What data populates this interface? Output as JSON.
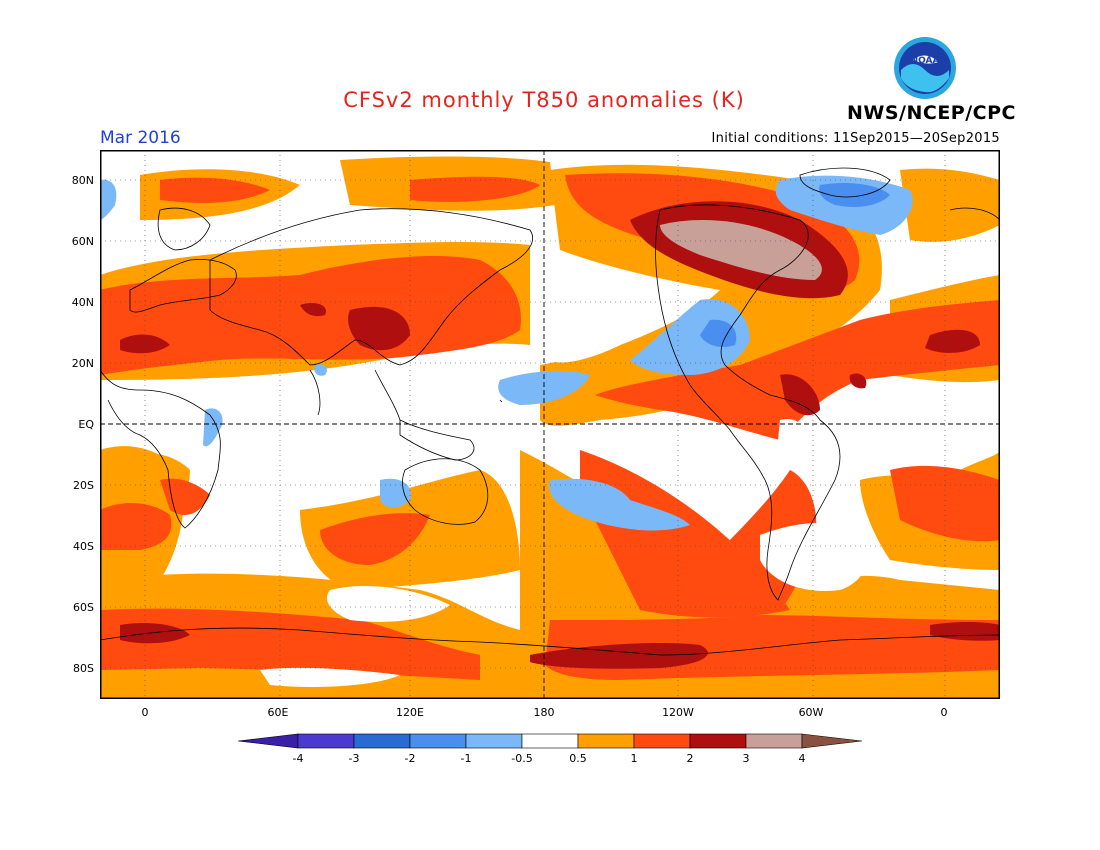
{
  "title": "CFSv2 monthly T850 anomalies (K)",
  "period": "Mar 2016",
  "initial_conditions": "Initial conditions: 11Sep2015—20Sep2015",
  "agency": "NWS/NCEP/CPC",
  "logo_text": "NOAA",
  "lat_labels": [
    "80N",
    "60N",
    "40N",
    "20N",
    "EQ",
    "20S",
    "40S",
    "60S",
    "80S"
  ],
  "lon_labels": [
    "0",
    "60E",
    "120E",
    "180",
    "120W",
    "60W",
    "0"
  ],
  "colorbar": {
    "labels": [
      "-4",
      "-3",
      "-2",
      "-1",
      "-0.5",
      "0.5",
      "1",
      "2",
      "3",
      "4"
    ],
    "colors": [
      "#3a1fa8",
      "#4a3ad0",
      "#2a6ad4",
      "#4a8ef0",
      "#7ab8f8",
      "#ffffff",
      "#ffa000",
      "#ff4a10",
      "#b00f10",
      "#c8a098",
      "#8a5040"
    ]
  },
  "colors": {
    "title": "#e8231d",
    "period": "#1f3fe0",
    "land_outline": "#000000"
  }
}
